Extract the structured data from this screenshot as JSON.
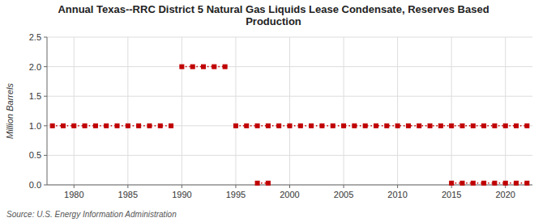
{
  "chart_data": {
    "type": "line",
    "title": "Annual Texas--RRC District 5 Natural Gas Liquids Lease Condensate, Reserves Based\nProduction",
    "y_label": "Million Barrels",
    "annotations": [
      "Source: U.S. Energy Information Administration"
    ],
    "xlim": [
      1977.5,
      2022.5
    ],
    "ylim": [
      0.0,
      2.5
    ],
    "xticks": [
      1980,
      1985,
      1990,
      1995,
      2000,
      2005,
      2010,
      2015,
      2020
    ],
    "yticks": [
      {
        "value": 0.0,
        "label": "0.0"
      },
      0.5,
      {
        "value": 1.0,
        "label": "1.0"
      },
      1.5,
      {
        "value": 2.0,
        "label": "2.0"
      },
      2.5
    ],
    "grid": true,
    "series": [
      {
        "color": "#c00000",
        "marker": "square",
        "line_style": "dotted",
        "x": [
          1978,
          1979,
          1980,
          1981,
          1982,
          1983,
          1984,
          1985,
          1986,
          1987,
          1988,
          1989
        ],
        "values": [
          1.0,
          1.0,
          1.0,
          1.0,
          1.0,
          1.0,
          1.0,
          1.0,
          1.0,
          1.0,
          1.0,
          1.0
        ]
      },
      {
        "color": "#c00000",
        "marker": "square",
        "line_style": "dotted",
        "x": [
          1990,
          1991,
          1992,
          1993,
          1994
        ],
        "values": [
          2.0,
          2.0,
          2.0,
          2.0,
          2.0
        ]
      },
      {
        "color": "#c00000",
        "marker": "square",
        "line_style": "dotted",
        "x": [
          1995,
          1996,
          1997,
          1998,
          1999,
          2000,
          2001,
          2002,
          2003,
          2004,
          2005,
          2006,
          2007,
          2008,
          2009,
          2010,
          2011,
          2012,
          2013,
          2014,
          2015,
          2016,
          2017,
          2018,
          2019,
          2020,
          2021,
          2022
        ],
        "values": [
          1.0,
          1.0,
          1.0,
          1.0,
          1.0,
          1.0,
          1.0,
          1.0,
          1.0,
          1.0,
          1.0,
          1.0,
          1.0,
          1.0,
          1.0,
          1.0,
          1.0,
          1.0,
          1.0,
          1.0,
          1.0,
          1.0,
          1.0,
          1.0,
          1.0,
          1.0,
          1.0,
          1.0
        ]
      },
      {
        "color": "#c00000",
        "marker": "square",
        "line_style": "dotted",
        "x": [
          1997,
          1998
        ],
        "values": [
          0.03,
          0.03
        ]
      },
      {
        "color": "#c00000",
        "marker": "square",
        "line_style": "dotted",
        "x": [
          2015,
          2016,
          2017,
          2018,
          2019,
          2020,
          2021,
          2022
        ],
        "values": [
          0.03,
          0.03,
          0.03,
          0.03,
          0.03,
          0.03,
          0.03,
          0.03
        ]
      }
    ]
  }
}
